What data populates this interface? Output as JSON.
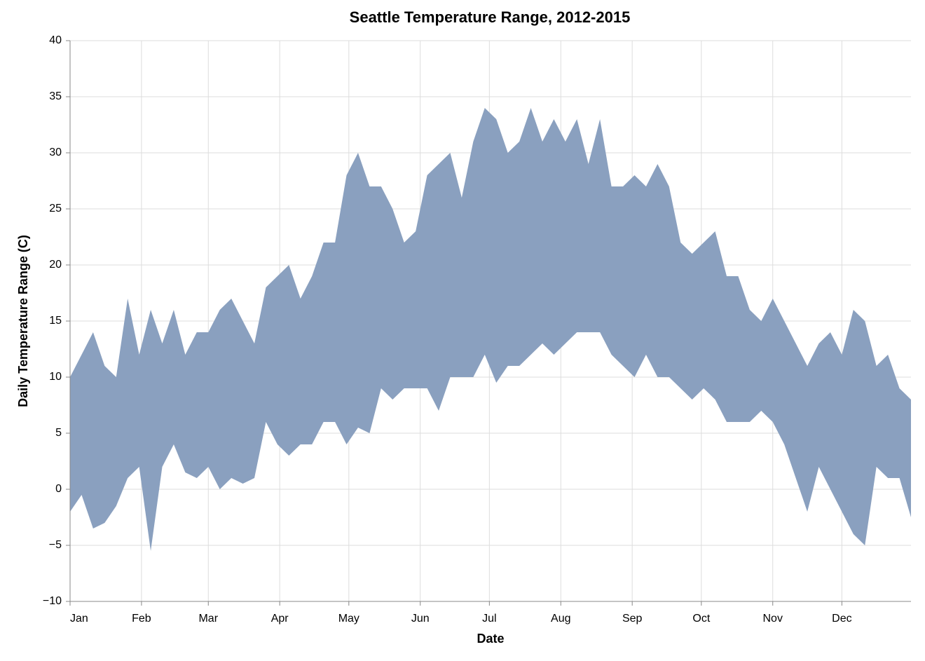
{
  "chart_data": {
    "type": "range-area",
    "title": "Seattle Temperature Range, 2012-2015",
    "x_label": "Date",
    "y_label": "Daily Temperature Range (C)",
    "color": "#8aa0bf",
    "x": [
      0,
      5,
      10,
      15,
      20,
      25,
      30,
      35,
      40,
      45,
      50,
      55,
      60,
      65,
      70,
      75,
      80,
      85,
      90,
      95,
      100,
      105,
      110,
      115,
      120,
      125,
      130,
      135,
      140,
      145,
      150,
      155,
      160,
      165,
      170,
      175,
      180,
      185,
      190,
      195,
      200,
      205,
      210,
      215,
      220,
      225,
      230,
      235,
      240,
      245,
      250,
      255,
      260,
      265,
      270,
      275,
      280,
      285,
      290,
      295,
      300,
      305,
      310,
      315,
      320,
      325,
      330,
      335,
      340,
      345,
      350,
      355,
      360,
      365
    ],
    "highs": [
      10,
      12,
      14,
      11,
      10,
      17,
      12,
      16,
      13,
      16,
      12,
      14,
      14,
      16,
      17,
      15,
      13,
      18,
      19,
      20,
      17,
      19,
      22,
      22,
      28,
      30,
      27,
      27,
      25,
      22,
      23,
      28,
      29,
      30,
      26,
      31,
      34,
      33,
      30,
      31,
      34,
      31,
      33,
      31,
      33,
      29,
      33,
      27,
      27,
      28,
      27,
      29,
      27,
      22,
      21,
      22,
      23,
      19,
      19,
      16,
      15,
      17,
      15,
      13,
      11,
      13,
      14,
      12,
      16,
      15,
      11,
      12,
      9,
      8
    ],
    "lows": [
      -2,
      -0.5,
      -3.5,
      -3,
      -1.5,
      1,
      2,
      -5.5,
      2,
      4,
      1.5,
      1,
      2,
      0,
      1,
      0.5,
      1,
      6,
      4,
      3,
      4,
      4,
      6,
      6,
      4,
      5.5,
      5,
      9,
      8,
      9,
      9,
      9,
      7,
      10,
      10,
      10,
      12,
      9.5,
      11,
      11,
      12,
      13,
      12,
      13,
      14,
      14,
      14,
      12,
      11,
      10,
      12,
      10,
      10,
      9,
      8,
      9,
      8,
      6,
      6,
      6,
      7,
      6,
      4,
      1,
      -2,
      2,
      0,
      -2,
      -4,
      -5,
      2,
      1,
      1,
      -2.5
    ],
    "xlim": [
      0,
      365
    ],
    "xticks": [
      {
        "value": 0,
        "label": "Jan"
      },
      {
        "value": 31,
        "label": "Feb"
      },
      {
        "value": 60,
        "label": "Mar"
      },
      {
        "value": 91,
        "label": "Apr"
      },
      {
        "value": 121,
        "label": "May"
      },
      {
        "value": 152,
        "label": "Jun"
      },
      {
        "value": 182,
        "label": "Jul"
      },
      {
        "value": 213,
        "label": "Aug"
      },
      {
        "value": 244,
        "label": "Sep"
      },
      {
        "value": 274,
        "label": "Oct"
      },
      {
        "value": 305,
        "label": "Nov"
      },
      {
        "value": 335,
        "label": "Dec"
      }
    ],
    "ylim": [
      -10,
      40
    ],
    "yticks": [
      {
        "value": -10,
        "label": "−10"
      },
      {
        "value": -5,
        "label": "−5"
      },
      0,
      5,
      10,
      15,
      20,
      25,
      30,
      35,
      40
    ],
    "grid": true
  }
}
